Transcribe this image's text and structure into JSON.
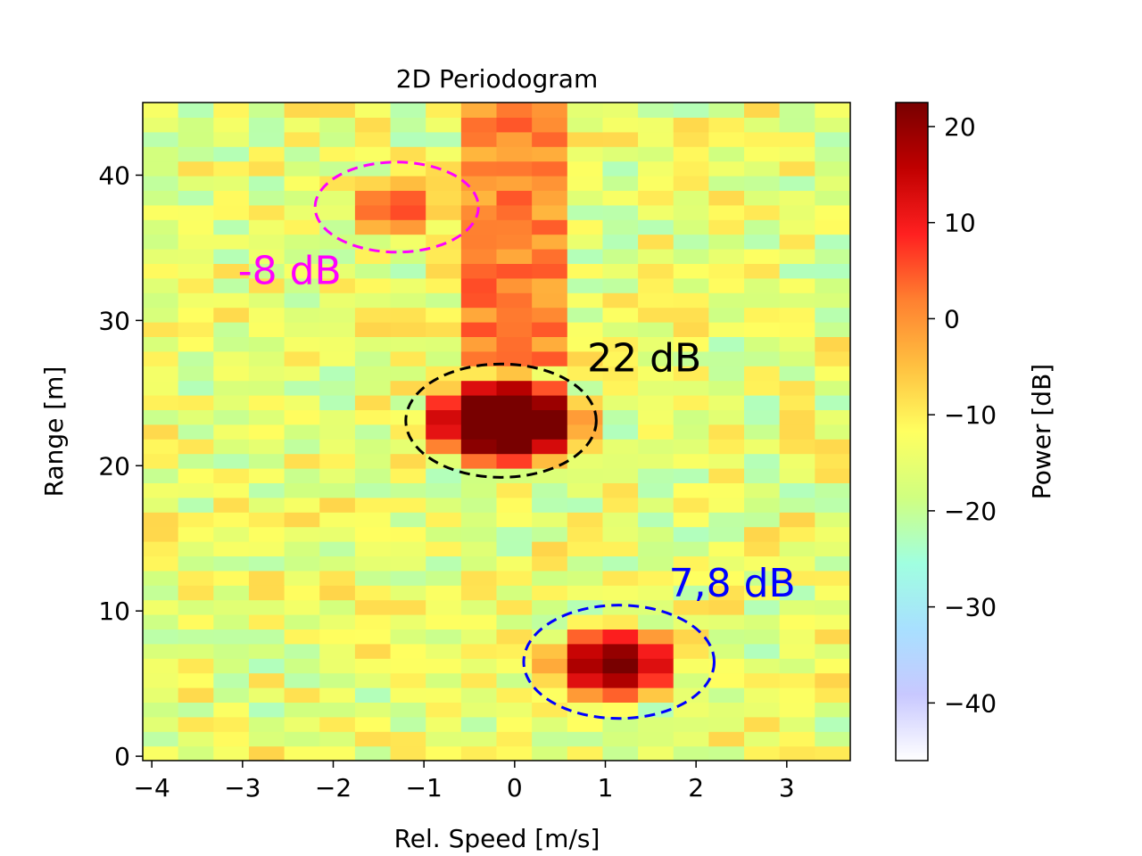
{
  "chart_data": {
    "type": "heatmap",
    "title": "2D Periodogram",
    "xlabel": "Rel. Speed [m/s]",
    "ylabel": "Range [m]",
    "xlim": [
      -4.1,
      3.7
    ],
    "ylim": [
      -0.3,
      45
    ],
    "x_ticks": [
      -4,
      -3,
      -2,
      -1,
      0,
      1,
      2,
      3
    ],
    "x_tick_labels": [
      "−4",
      "−3",
      "−2",
      "−1",
      "0",
      "1",
      "2",
      "3"
    ],
    "y_ticks": [
      0,
      10,
      20,
      30,
      40
    ],
    "y_tick_labels": [
      "0",
      "10",
      "20",
      "30",
      "40"
    ],
    "grid": false,
    "colorbar": {
      "label": "Power [dB]",
      "range": [
        -46,
        22.5
      ],
      "ticks": [
        20,
        10,
        0,
        -10,
        -20,
        -30,
        -40
      ],
      "tick_labels": [
        "20",
        "10",
        "0",
        "−10",
        "−20",
        "−30",
        "−40"
      ],
      "colormap": [
        "#ffffff",
        "#c8c8ff",
        "#a8e0ff",
        "#a0ffe0",
        "#d0ff80",
        "#ffff60",
        "#ffc040",
        "#ff8030",
        "#ff2020",
        "#c00000",
        "#780000"
      ]
    },
    "grid_x_range": [
      -4.1,
      3.7
    ],
    "grid_y_range": [
      -0.3,
      45
    ],
    "grid_cols": 20,
    "grid_rows": 45,
    "background_level_db": -15,
    "targets": [
      {
        "speed": -0.1,
        "range": 23.1,
        "peak_db": 22
      },
      {
        "speed": 1.1,
        "range": 6.4,
        "peak_db": 7.8
      },
      {
        "speed": -1.3,
        "range": 37.8,
        "peak_db": -8
      }
    ],
    "annotations": [
      {
        "text": "-8 dB",
        "color": "#ff00ff",
        "anchor_speed": -3.05,
        "anchor_range": 32.5
      },
      {
        "text": "22 dB",
        "color": "#000000",
        "anchor_speed": 0.8,
        "anchor_range": 26.5
      },
      {
        "text": "7,8 dB",
        "color": "#0000ff",
        "anchor_speed": 1.7,
        "anchor_range": 11.0
      }
    ],
    "ellipses": [
      {
        "color": "#000000",
        "center_speed": -0.15,
        "center_range": 23.1,
        "half_width_speed": 1.05,
        "half_height_range": 3.9
      },
      {
        "color": "#0000ff",
        "center_speed": 1.15,
        "center_range": 6.5,
        "half_width_speed": 1.05,
        "half_height_range": 3.9
      },
      {
        "color": "#ff00ff",
        "center_speed": -1.3,
        "center_range": 37.8,
        "half_width_speed": 0.9,
        "half_height_range": 3.1
      }
    ]
  }
}
